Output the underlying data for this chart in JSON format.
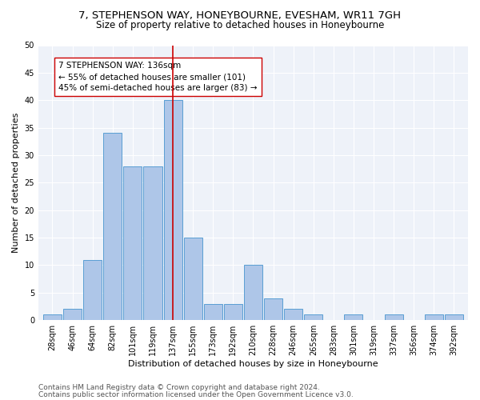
{
  "title_line1": "7, STEPHENSON WAY, HONEYBOURNE, EVESHAM, WR11 7GH",
  "title_line2": "Size of property relative to detached houses in Honeybourne",
  "xlabel": "Distribution of detached houses by size in Honeybourne",
  "ylabel": "Number of detached properties",
  "footer_line1": "Contains HM Land Registry data © Crown copyright and database right 2024.",
  "footer_line2": "Contains public sector information licensed under the Open Government Licence v3.0.",
  "bin_labels": [
    "28sqm",
    "46sqm",
    "64sqm",
    "82sqm",
    "101sqm",
    "119sqm",
    "137sqm",
    "155sqm",
    "173sqm",
    "192sqm",
    "210sqm",
    "228sqm",
    "246sqm",
    "265sqm",
    "283sqm",
    "301sqm",
    "319sqm",
    "337sqm",
    "356sqm",
    "374sqm",
    "392sqm"
  ],
  "bar_heights": [
    1,
    2,
    11,
    34,
    28,
    28,
    40,
    15,
    3,
    3,
    10,
    4,
    2,
    1,
    0,
    1,
    0,
    1,
    0,
    1,
    1
  ],
  "bar_color": "#aec6e8",
  "bar_edge_color": "#5a9fd4",
  "vline_index": 6,
  "vline_color": "#cc0000",
  "annotation_text": "7 STEPHENSON WAY: 136sqm\n← 55% of detached houses are smaller (101)\n45% of semi-detached houses are larger (83) →",
  "ylim": [
    0,
    50
  ],
  "yticks": [
    0,
    5,
    10,
    15,
    20,
    25,
    30,
    35,
    40,
    45,
    50
  ],
  "bg_color": "#eef2f9",
  "title_fontsize": 9.5,
  "subtitle_fontsize": 8.5,
  "axis_label_fontsize": 8,
  "tick_fontsize": 7,
  "annotation_fontsize": 7.5,
  "footer_fontsize": 6.5
}
